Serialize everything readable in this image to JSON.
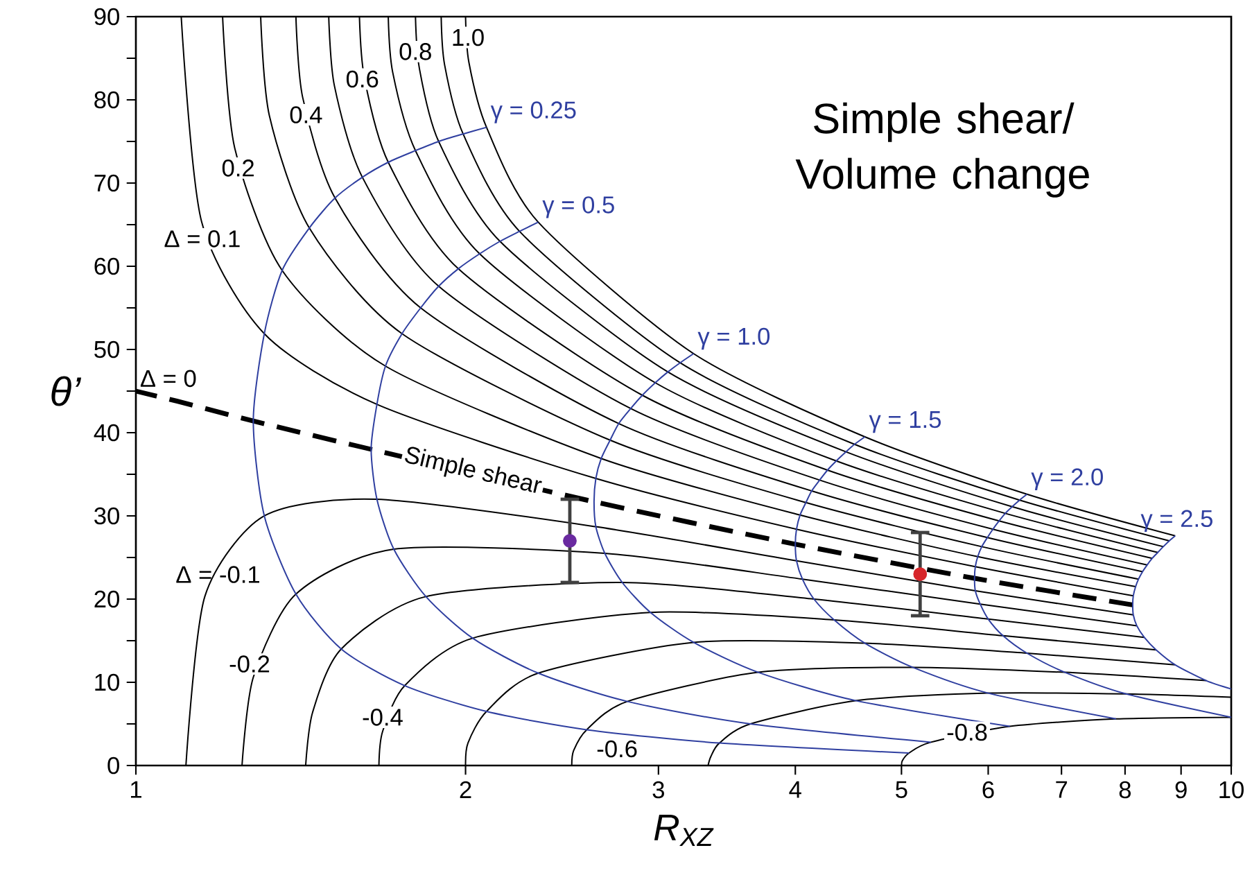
{
  "chart_data": {
    "type": "line",
    "xlabel": "R$_{XZ}$",
    "ylabel": "θ’",
    "log": "x",
    "xlim": [
      1,
      10
    ],
    "ylim": [
      0,
      90
    ],
    "xticks": [
      1,
      2,
      3,
      4,
      5,
      6,
      7,
      8,
      9,
      10
    ],
    "yticks": [
      0,
      {
        "value": 5,
        "label": null
      },
      10,
      {
        "value": 15,
        "label": null
      },
      20,
      {
        "value": 25,
        "label": null
      },
      30,
      {
        "value": 35,
        "label": null
      },
      40,
      {
        "value": 45,
        "label": null
      },
      50,
      {
        "value": 55,
        "label": null
      },
      60,
      {
        "value": 65,
        "label": null
      },
      70,
      {
        "value": 75,
        "label": null
      },
      80,
      {
        "value": 85,
        "label": null
      },
      90
    ],
    "line_style": "solid",
    "series": [
      {
        "color": "#000000",
        "x": [
          5,
          5.01,
          5.08,
          5.32,
          6.28,
          7.85,
          10
        ],
        "values": [
          0,
          0.6,
          1.5,
          2.8,
          4.7,
          5.6,
          5.8
        ]
      },
      {
        "color": "#000000",
        "x": [
          3.33,
          3.35,
          3.41,
          3.64,
          4.54,
          6.0,
          8.02,
          10
        ],
        "values": [
          0,
          1.1,
          2.7,
          5,
          7.8,
          8.7,
          8.6,
          8.2
        ]
      },
      {
        "color": "#000000",
        "x": [
          2.5,
          2.51,
          2.58,
          2.81,
          3.7,
          5.12,
          7.05,
          9.49
        ],
        "values": [
          0,
          1.8,
          4.3,
          7.7,
          11.2,
          11.8,
          11.2,
          10.2
        ]
      },
      {
        "color": "#000000",
        "x": [
          2,
          2.01,
          2.09,
          2.33,
          3.23,
          4.63,
          6.51,
          8.89
        ],
        "values": [
          0,
          2.7,
          6.5,
          11.1,
          14.8,
          14.7,
          13.5,
          12.1
        ]
      },
      {
        "color": "#000000",
        "x": [
          1.667,
          1.68,
          1.76,
          2.03,
          2.95,
          4.34,
          6.19,
          8.54
        ],
        "values": [
          0,
          4.1,
          9.6,
          15.3,
          18.4,
          17.5,
          15.6,
          13.9
        ]
      },
      {
        "color": "#000000",
        "x": [
          1.429,
          1.45,
          1.54,
          1.84,
          2.78,
          4.16,
          6.0,
          8.33
        ],
        "values": [
          0,
          6.4,
          14,
          20.3,
          22,
          20,
          17.6,
          15.4
        ]
      },
      {
        "color": "#000000",
        "x": [
          1.25,
          1.28,
          1.4,
          1.72,
          2.68,
          4.06,
          5.9,
          8.2
        ],
        "values": [
          0,
          10.6,
          20.6,
          26,
          25.5,
          22.4,
          19.4,
          16.8
        ]
      },
      {
        "color": "#000000",
        "x": [
          1.111,
          1.156,
          1.31,
          1.66,
          2.63,
          4.01,
          5.84,
          8.14
        ],
        "values": [
          0,
          20.3,
          30,
          32,
          28.7,
          24.6,
          21,
          18.1
        ]
      },
      {
        "name": "Δ = 0",
        "color": "#000000",
        "line_style": "dashed",
        "x": [
          8.13,
          5.83,
          4,
          2.62,
          1.64,
          1.28,
          1.105,
          1
        ],
        "values": [
          19.3,
          22.5,
          26.6,
          31.7,
          38,
          41.4,
          43.6,
          45
        ]
      },
      {
        "color": "#000000",
        "x": [
          1.1,
          1.148,
          1.31,
          1.66,
          2.63,
          4.01,
          5.84,
          8.14
        ],
        "values": [
          90,
          65.4,
          51.9,
          43.4,
          34.5,
          28.4,
          23.9,
          20.4
        ]
      },
      {
        "color": "#000000",
        "x": [
          1.2,
          1.231,
          1.36,
          1.69,
          2.66,
          4.04,
          5.87,
          8.18
        ],
        "values": [
          90,
          74.2,
          59.5,
          48,
          36.9,
          30.1,
          25.1,
          21.5
        ]
      },
      {
        "color": "#000000",
        "x": [
          1.3,
          1.324,
          1.44,
          1.75,
          2.71,
          4.09,
          5.92,
          8.23
        ],
        "values": [
          90,
          78.1,
          64.6,
          51.9,
          39.1,
          31.6,
          26.3,
          22.4
        ]
      },
      {
        "color": "#000000",
        "x": [
          1.4,
          1.42,
          1.52,
          1.82,
          2.76,
          4.14,
          5.99,
          8.3
        ],
        "values": [
          90,
          80.3,
          68.2,
          55,
          41.1,
          33,
          27.4,
          23.3
        ]
      },
      {
        "color": "#000000",
        "x": [
          1.5,
          1.518,
          1.61,
          1.89,
          2.83,
          4.21,
          6.06,
          8.38
        ],
        "values": [
          90,
          81.7,
          70.7,
          57.6,
          42.9,
          34.3,
          28.4,
          24.1
        ]
      },
      {
        "color": "#000000",
        "x": [
          1.6,
          1.617,
          1.7,
          1.97,
          2.9,
          4.28,
          6.14,
          8.47
        ],
        "values": [
          90,
          82.6,
          72.5,
          59.7,
          44.5,
          35.5,
          29.4,
          24.9
        ]
      },
      {
        "color": "#000000",
        "x": [
          1.7,
          1.716,
          1.8,
          2.06,
          2.98,
          4.36,
          6.22,
          8.57
        ],
        "values": [
          90,
          83.3,
          73.9,
          61.5,
          46,
          36.6,
          30.3,
          25.6
        ]
      },
      {
        "color": "#000000",
        "x": [
          1.8,
          1.815,
          1.89,
          2.15,
          3.06,
          4.45,
          6.31,
          8.67
        ],
        "values": [
          90,
          83.8,
          75,
          63,
          47.3,
          37.7,
          31.1,
          26.3
        ]
      },
      {
        "color": "#000000",
        "x": [
          1.9,
          1.914,
          1.99,
          2.24,
          3.14,
          4.53,
          6.41,
          8.78
        ],
        "values": [
          90,
          84.2,
          75.9,
          64.2,
          48.4,
          38.6,
          31.9,
          27
        ]
      },
      {
        "color": "#000000",
        "x": [
          2,
          2.014,
          2.09,
          2.33,
          3.23,
          4.63,
          6.51,
          8.89
        ],
        "values": [
          90,
          84.5,
          76.7,
          65.3,
          49.5,
          39.5,
          32.6,
          27.6
        ]
      },
      {
        "name": "γ = 0.25",
        "color": "#2f3fa0",
        "x": [
          5.08,
          3.41,
          2.58,
          2.09,
          1.76,
          1.54,
          1.4,
          1.31,
          1.28,
          1.31,
          1.36,
          1.44,
          1.52,
          1.61,
          1.7,
          1.8,
          1.89,
          1.99,
          2.09
        ],
        "values": [
          1.5,
          2.7,
          4.3,
          6.5,
          9.6,
          14,
          20.6,
          30,
          41.4,
          51.9,
          59.5,
          64.6,
          68.2,
          70.7,
          72.5,
          73.9,
          75,
          75.9,
          76.7
        ]
      },
      {
        "name": "γ = 0.5",
        "color": "#2f3fa0",
        "x": [
          5.32,
          3.64,
          2.81,
          2.33,
          2.03,
          1.84,
          1.72,
          1.66,
          1.64,
          1.66,
          1.69,
          1.75,
          1.82,
          1.89,
          1.97,
          2.06,
          2.15,
          2.24,
          2.33
        ],
        "values": [
          2.8,
          5,
          7.7,
          11.1,
          15.3,
          20.3,
          26,
          32,
          38,
          43.4,
          48,
          51.9,
          55,
          57.6,
          59.7,
          61.5,
          63,
          64.2,
          65.3
        ]
      },
      {
        "name": "γ = 1.0",
        "color": "#2f3fa0",
        "x": [
          6.28,
          4.54,
          3.7,
          3.23,
          2.95,
          2.78,
          2.68,
          2.63,
          2.62,
          2.63,
          2.66,
          2.71,
          2.76,
          2.83,
          2.9,
          2.98,
          3.06,
          3.14,
          3.23
        ],
        "values": [
          4.7,
          7.8,
          11.2,
          14.8,
          18.4,
          22,
          25.5,
          28.7,
          31.7,
          34.5,
          36.9,
          39.1,
          41.1,
          42.9,
          44.5,
          46,
          47.3,
          48.4,
          49.5
        ]
      },
      {
        "name": "γ = 1.5",
        "color": "#2f3fa0",
        "x": [
          7.85,
          6,
          5.12,
          4.63,
          4.34,
          4.16,
          4.06,
          4.01,
          4,
          4.01,
          4.04,
          4.09,
          4.14,
          4.21,
          4.28,
          4.36,
          4.45,
          4.53,
          4.63
        ],
        "values": [
          5.6,
          8.7,
          11.8,
          14.7,
          17.5,
          20,
          22.4,
          24.6,
          26.6,
          28.4,
          30.1,
          31.6,
          33,
          34.3,
          35.5,
          36.6,
          37.7,
          38.6,
          39.5
        ]
      },
      {
        "name": "γ = 2.0",
        "color": "#2f3fa0",
        "x": [
          10,
          8.02,
          7.05,
          6.51,
          6.19,
          6,
          5.9,
          5.84,
          5.83,
          5.84,
          5.87,
          5.92,
          5.99,
          6.06,
          6.14,
          6.22,
          6.31,
          6.41,
          6.51
        ],
        "values": [
          5.8,
          8.6,
          11.2,
          13.5,
          15.6,
          17.6,
          19.4,
          21,
          22.5,
          23.9,
          25.1,
          26.3,
          27.4,
          28.4,
          29.4,
          30.3,
          31.1,
          31.9,
          32.6
        ]
      },
      {
        "name": "γ = 2.5",
        "color": "#2f3fa0",
        "x": [
          10,
          9.49,
          8.89,
          8.54,
          8.33,
          8.2,
          8.14,
          8.13,
          8.14,
          8.18,
          8.23,
          8.3,
          8.38,
          8.47,
          8.57,
          8.67,
          8.78,
          8.89
        ],
        "values": [
          9.2,
          10.2,
          12.1,
          13.9,
          15.4,
          16.8,
          18.1,
          19.3,
          20.4,
          21.5,
          22.4,
          23.3,
          24.1,
          24.9,
          25.6,
          26.3,
          27,
          27.6
        ]
      },
      {
        "type": "scatter",
        "color": "#404040",
        "x": [
          2.49,
          5.2
        ],
        "values": [
          27,
          23
        ],
        "errors": [
          5,
          5
        ],
        "colors": [
          "#6a2aa0",
          "#d7262b"
        ]
      }
    ],
    "annotations": [
      {
        "text": "1.0",
        "x": 2.01,
        "y": 87.5
      },
      {
        "text": "0.8",
        "x": 1.8,
        "y": 85.8
      },
      {
        "text": "0.6",
        "x": 1.61,
        "y": 82.5
      },
      {
        "text": "0.4",
        "x": 1.43,
        "y": 78.2
      },
      {
        "text": "0.2",
        "x": 1.24,
        "y": 71.8
      },
      {
        "text": "Δ = 0.1",
        "x": 1.15,
        "y": 63.3
      },
      {
        "text": "Simple shear",
        "x": 2.03,
        "y": 35.3
      },
      "Δ = -0.1",
      {
        "text": "-0.2",
        "x": 1.27,
        "y": 12.2
      },
      {
        "text": "-0.4",
        "x": 1.68,
        "y": 5.8
      },
      {
        "text": "-0.6",
        "x": 2.75,
        "y": 2
      },
      {
        "text": "-0.8",
        "x": 5.74,
        "y": 4
      },
      "Simple shear/ Volume change"
    ]
  }
}
